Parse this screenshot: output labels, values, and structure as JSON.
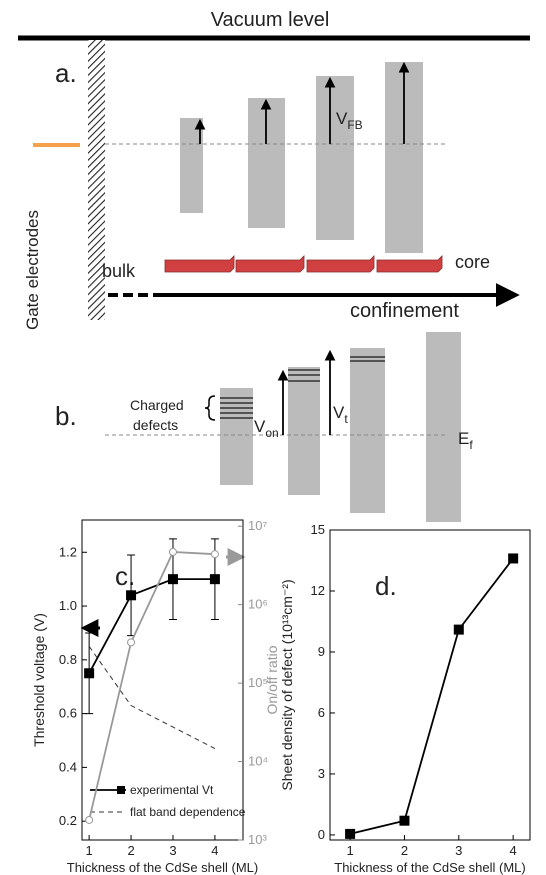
{
  "diagram": {
    "panel_a": {
      "label": "a.",
      "vacuum": "Vacuum level",
      "gate": "Gate electrodes",
      "v_fb": {
        "main": "V",
        "sub": "FB"
      },
      "bulk": "bulk",
      "core": "core",
      "confinement": "confinement"
    },
    "panel_b": {
      "label": "b.",
      "defects": [
        "Charged",
        "defects"
      ],
      "v_on": {
        "main": "V",
        "sub": "on"
      },
      "v_t": {
        "main": "V",
        "sub": "t"
      },
      "e_f": {
        "main": "E",
        "sub": "f"
      }
    }
  },
  "chart_data": [
    {
      "type": "line",
      "annotation": "c.",
      "x_label": "Thickness of the CdSe shell (ML)",
      "y_label": "Threshold voltage (V)",
      "y2_label": "On/off ratio",
      "x": [
        1,
        2,
        3,
        4
      ],
      "xlim": [
        0.83,
        4.67
      ],
      "xticks": [
        1,
        2,
        3,
        4
      ],
      "ylim": [
        0.13,
        1.32
      ],
      "yticks": [
        0.2,
        0.4,
        0.6,
        0.8,
        {
          "value": 1,
          "label": "1.0"
        },
        1.2
      ],
      "y2lim": [
        1000,
        12000000
      ],
      "y2_log": true,
      "y2ticks": [
        {
          "value": 1000,
          "label": "10³"
        },
        {
          "value": 10000,
          "label": "10⁴"
        },
        {
          "value": 100000,
          "label": "10⁵"
        },
        {
          "value": 1000000,
          "label": "10⁶"
        },
        {
          "value": 10000000,
          "label": "10⁷"
        }
      ],
      "series": [
        {
          "name": "experimental Vt",
          "color": "#000000",
          "marker": "square",
          "values": [
            0.75,
            1.04,
            1.1,
            1.1
          ],
          "errors": [
            0.15,
            0.15,
            0.15,
            0.15
          ]
        },
        {
          "name": "flat band dependence",
          "color": "#333333",
          "dash": true,
          "values": [
            0.85,
            0.63,
            0.55,
            0.47
          ]
        },
        {
          "axis": "y2",
          "color": "#999999",
          "marker": "circle",
          "values": [
            1800,
            330000,
            4700000,
            4400000
          ]
        }
      ]
    },
    {
      "type": "line",
      "annotation": "d.",
      "x_label": "Thickness of the CdSe shell (ML)",
      "y_label": "Sheet density of defect (10¹³cm⁻²)",
      "x": [
        1,
        2,
        3,
        4
      ],
      "xlim": [
        0.63,
        4.31
      ],
      "xticks": [
        1,
        2,
        3,
        4
      ],
      "ylim": [
        -0.25,
        15
      ],
      "yticks": [
        0,
        3,
        6,
        9,
        12,
        15
      ],
      "series": [
        {
          "color": "#000000",
          "marker": "square",
          "values": [
            0.05,
            0.7,
            10.1,
            13.6
          ]
        }
      ]
    }
  ]
}
